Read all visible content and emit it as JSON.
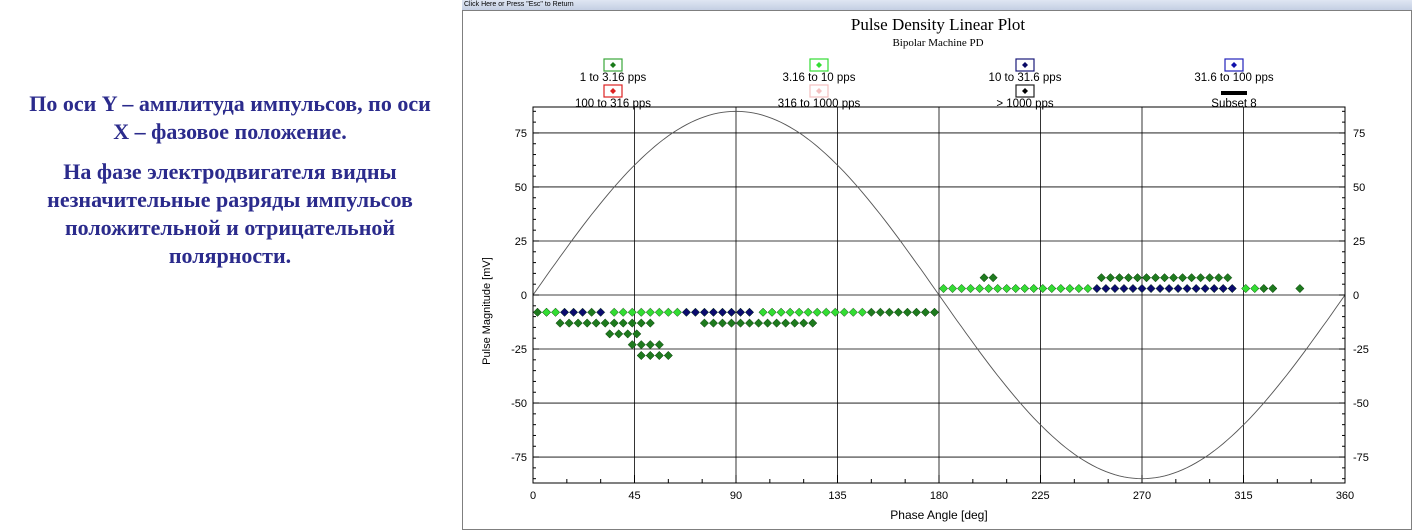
{
  "caption": {
    "para1": "По оси Y – амплитуда импульсов, по оси X – фазовое положение.",
    "para2": "На фазе электродвигателя видны незначительные разряды импульсов положительной и отрицательной полярности."
  },
  "window": {
    "titlebar_text": "Click Here or Press \"Esc\" to Return"
  },
  "chart_data": {
    "type": "scatter",
    "title": "Pulse Density Linear Plot",
    "subtitle": "Bipolar Machine PD",
    "xlabel": "Phase Angle [deg]",
    "ylabel": "Pulse Magnitude [mV]",
    "xlim": [
      0,
      360
    ],
    "ylim": [
      -87,
      87
    ],
    "xticks": [
      0,
      45,
      90,
      135,
      180,
      225,
      270,
      315,
      360
    ],
    "yticks": [
      75,
      50,
      25,
      0,
      -25,
      -50,
      -75
    ],
    "grid": true,
    "reference_sine": {
      "amplitude": 85,
      "period_deg": 360
    },
    "legend": [
      {
        "label": "1 to 3.16 pps",
        "box_color": "#3aa63a",
        "marker_color": "#1a7a1a",
        "marker": "diamond"
      },
      {
        "label": "3.16 to 10 pps",
        "box_color": "#33dd33",
        "marker_color": "#33dd33",
        "marker": "diamond"
      },
      {
        "label": "10 to 31.6 pps",
        "box_color": "#1a1a7a",
        "marker_color": "#0a0a66",
        "marker": "diamond"
      },
      {
        "label": "31.6 to 100 pps",
        "box_color": "#2222bb",
        "marker_color": "#1111aa",
        "marker": "diamond"
      },
      {
        "label": "100 to 316 pps",
        "box_color": "#dd2222",
        "marker_color": "#dd2222",
        "marker": "diamond"
      },
      {
        "label": "316 to 1000 pps",
        "box_color": "#f4c0c0",
        "marker_color": "#f4c0c0",
        "marker": "diamond"
      },
      {
        "label": "> 1000 pps",
        "box_color": "#222222",
        "marker_color": "#000000",
        "marker": "diamond"
      },
      {
        "label": "Subset 8",
        "box_color": "#000000",
        "marker_color": "#000000",
        "marker": "bar"
      }
    ],
    "series": [
      {
        "name": "1 to 3.16 pps",
        "color": "#1e7a1e",
        "points": [
          [
            12,
            -13
          ],
          [
            16,
            -13
          ],
          [
            20,
            -13
          ],
          [
            24,
            -13
          ],
          [
            28,
            -13
          ],
          [
            32,
            -13
          ],
          [
            36,
            -13
          ],
          [
            40,
            -13
          ],
          [
            44,
            -13
          ],
          [
            48,
            -13
          ],
          [
            52,
            -13
          ],
          [
            34,
            -18
          ],
          [
            38,
            -18
          ],
          [
            42,
            -18
          ],
          [
            46,
            -18
          ],
          [
            44,
            -23
          ],
          [
            48,
            -23
          ],
          [
            52,
            -23
          ],
          [
            56,
            -23
          ],
          [
            48,
            -28
          ],
          [
            52,
            -28
          ],
          [
            56,
            -28
          ],
          [
            60,
            -28
          ],
          [
            76,
            -13
          ],
          [
            80,
            -13
          ],
          [
            84,
            -13
          ],
          [
            88,
            -13
          ],
          [
            92,
            -13
          ],
          [
            96,
            -13
          ],
          [
            100,
            -13
          ],
          [
            104,
            -13
          ],
          [
            108,
            -13
          ],
          [
            112,
            -13
          ],
          [
            116,
            -13
          ],
          [
            120,
            -13
          ],
          [
            124,
            -13
          ],
          [
            150,
            -8
          ],
          [
            154,
            -8
          ],
          [
            158,
            -8
          ],
          [
            162,
            -8
          ],
          [
            166,
            -8
          ],
          [
            170,
            -8
          ],
          [
            174,
            -8
          ],
          [
            178,
            -8
          ],
          [
            2,
            -8
          ],
          [
            6,
            -8
          ],
          [
            26,
            -8
          ],
          [
            200,
            8
          ],
          [
            204,
            8
          ],
          [
            252,
            8
          ],
          [
            256,
            8
          ],
          [
            260,
            8
          ],
          [
            264,
            8
          ],
          [
            268,
            8
          ],
          [
            272,
            8
          ],
          [
            276,
            8
          ],
          [
            280,
            8
          ],
          [
            284,
            8
          ],
          [
            288,
            8
          ],
          [
            292,
            8
          ],
          [
            296,
            8
          ],
          [
            300,
            8
          ],
          [
            304,
            8
          ],
          [
            308,
            8
          ],
          [
            324,
            3
          ],
          [
            328,
            3
          ],
          [
            340,
            3
          ]
        ]
      },
      {
        "name": "3.16 to 10 pps",
        "color": "#33dd33",
        "points": [
          [
            36,
            -8
          ],
          [
            40,
            -8
          ],
          [
            44,
            -8
          ],
          [
            48,
            -8
          ],
          [
            52,
            -8
          ],
          [
            56,
            -8
          ],
          [
            60,
            -8
          ],
          [
            64,
            -8
          ],
          [
            102,
            -8
          ],
          [
            106,
            -8
          ],
          [
            110,
            -8
          ],
          [
            114,
            -8
          ],
          [
            118,
            -8
          ],
          [
            122,
            -8
          ],
          [
            126,
            -8
          ],
          [
            130,
            -8
          ],
          [
            134,
            -8
          ],
          [
            138,
            -8
          ],
          [
            142,
            -8
          ],
          [
            146,
            -8
          ],
          [
            182,
            3
          ],
          [
            186,
            3
          ],
          [
            190,
            3
          ],
          [
            194,
            3
          ],
          [
            198,
            3
          ],
          [
            202,
            3
          ],
          [
            206,
            3
          ],
          [
            210,
            3
          ],
          [
            214,
            3
          ],
          [
            218,
            3
          ],
          [
            222,
            3
          ],
          [
            226,
            3
          ],
          [
            230,
            3
          ],
          [
            234,
            3
          ],
          [
            238,
            3
          ],
          [
            242,
            3
          ],
          [
            246,
            3
          ],
          [
            316,
            3
          ],
          [
            320,
            3
          ],
          [
            6,
            -8
          ],
          [
            10,
            -8
          ]
        ]
      },
      {
        "name": "10 to 31.6 pps",
        "color": "#0b0b6e",
        "points": [
          [
            14,
            -8
          ],
          [
            18,
            -8
          ],
          [
            22,
            -8
          ],
          [
            30,
            -8
          ],
          [
            68,
            -8
          ],
          [
            72,
            -8
          ],
          [
            76,
            -8
          ],
          [
            80,
            -8
          ],
          [
            84,
            -8
          ],
          [
            88,
            -8
          ],
          [
            92,
            -8
          ],
          [
            96,
            -8
          ],
          [
            250,
            3
          ],
          [
            254,
            3
          ],
          [
            258,
            3
          ],
          [
            262,
            3
          ],
          [
            266,
            3
          ],
          [
            270,
            3
          ],
          [
            274,
            3
          ],
          [
            278,
            3
          ],
          [
            282,
            3
          ],
          [
            286,
            3
          ],
          [
            290,
            3
          ],
          [
            294,
            3
          ],
          [
            298,
            3
          ],
          [
            302,
            3
          ],
          [
            306,
            3
          ],
          [
            310,
            3
          ]
        ]
      }
    ]
  }
}
